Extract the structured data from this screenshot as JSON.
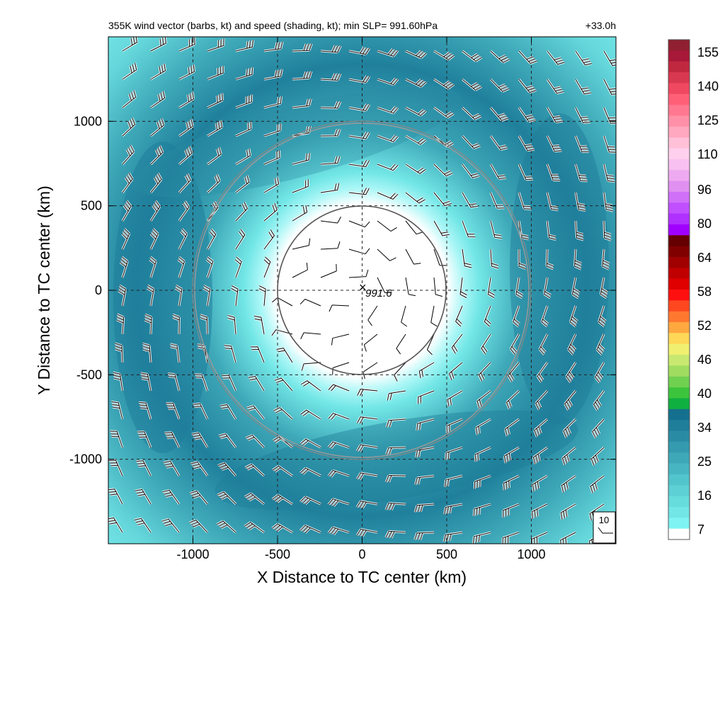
{
  "chart_data": {
    "type": "heatmap",
    "title": "355K wind vector (barbs, kt) and speed (shading, kt); min SLP= 991.60hPa",
    "time_label": "+33.0h",
    "xlabel": "X Distance to TC center (km)",
    "ylabel": "Y Distance to TC center (km)",
    "xlim": [
      -1500,
      1500
    ],
    "ylim": [
      -1500,
      1500
    ],
    "x_ticks": [
      -1000,
      -500,
      0,
      500,
      1000
    ],
    "y_ticks": [
      -1000,
      -500,
      0,
      500,
      1000
    ],
    "x_tick_labels": [
      "-1000",
      "-500",
      "0",
      "500",
      "1000"
    ],
    "y_tick_labels": [
      "-1000",
      "-500",
      "0",
      "500",
      "1000"
    ],
    "grid": true,
    "center_marker": {
      "x": 0,
      "y": 0,
      "label": "991.6"
    },
    "range_rings_km": [
      500,
      1000
    ],
    "reference_vector_label": "10",
    "colorbar": {
      "tick_labels": [
        "7",
        "16",
        "25",
        "34",
        "40",
        "46",
        "52",
        "58",
        "64",
        "80",
        "96",
        "110",
        "125",
        "140",
        "155"
      ],
      "colors": [
        "#ffffff",
        "#7ff3f3",
        "#72e6e6",
        "#66dcdc",
        "#5cd0d4",
        "#52c4cc",
        "#48b6c2",
        "#3ea8b8",
        "#349aae",
        "#2a8ca4",
        "#1f7e9a",
        "#14708e",
        "#10b040",
        "#3cc43c",
        "#70d050",
        "#a0dc60",
        "#c8e870",
        "#f0f070",
        "#ffd858",
        "#ffa840",
        "#ff7830",
        "#ff4820",
        "#ff1010",
        "#e00000",
        "#c00000",
        "#a00000",
        "#800000",
        "#640000",
        "#a000ff",
        "#b030ff",
        "#c050ff",
        "#d070f8",
        "#e090f0",
        "#eeaaf0",
        "#f8c0f0",
        "#ffd0ee",
        "#ffc0d8",
        "#ffa8c0",
        "#ff90a8",
        "#ff7890",
        "#ff6078",
        "#f04860",
        "#d83850",
        "#c02840",
        "#a81838",
        "#902030"
      ]
    },
    "speed_field_description_regions": {
      "calm_core_radius_km": 520,
      "max_shade_kt": 34
    }
  }
}
